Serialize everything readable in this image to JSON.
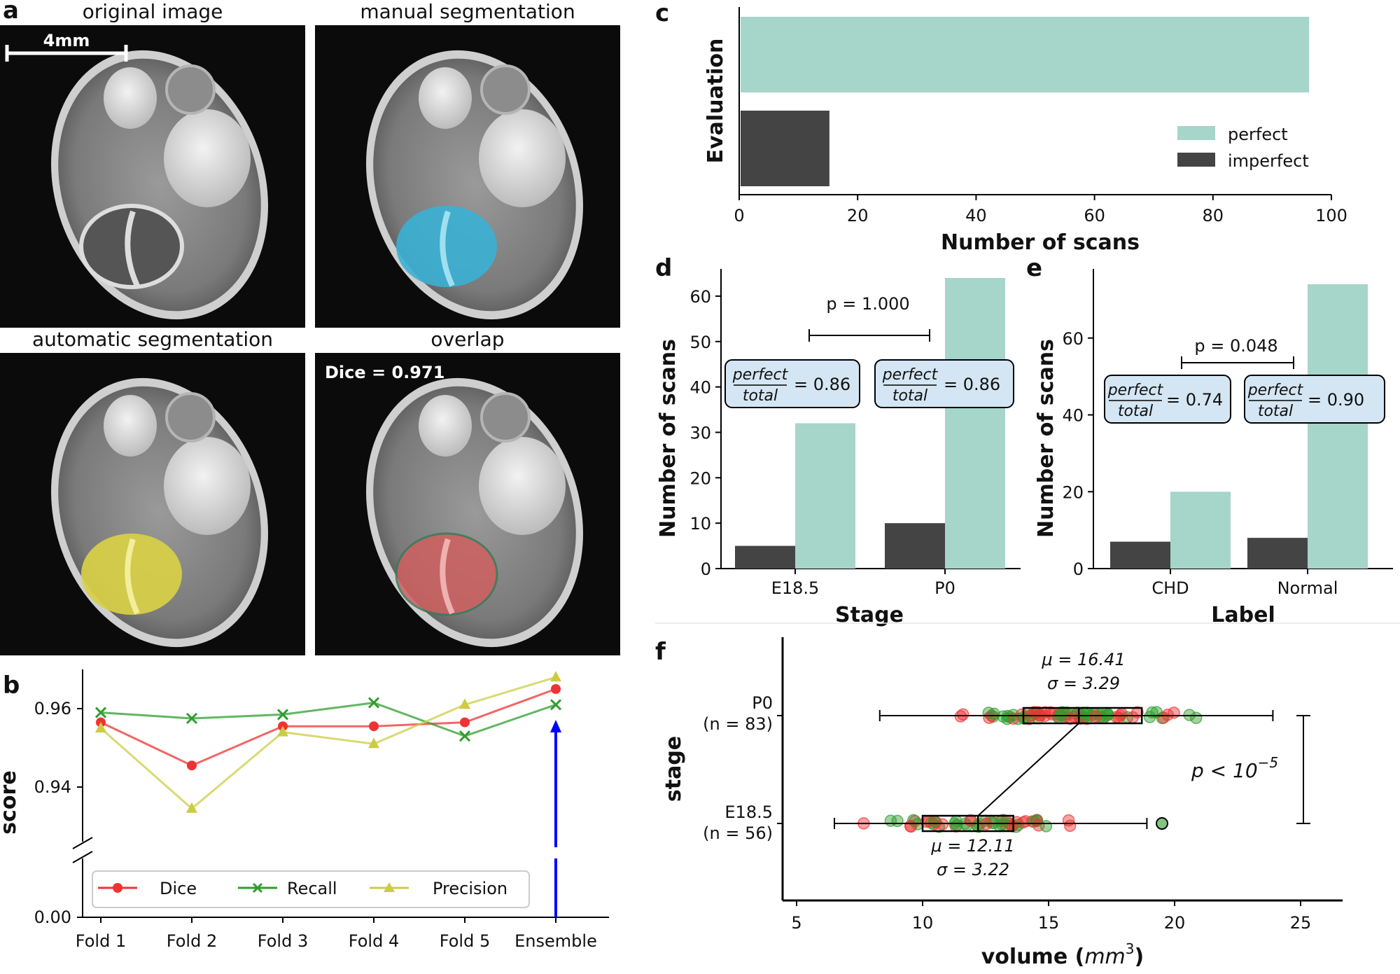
{
  "panels": {
    "a": {
      "letter": "a",
      "titles": [
        "original image",
        "manual segmentation",
        "automatic segmentation",
        "overlap"
      ],
      "scale_bar_label": "4mm",
      "dice_text": "Dice = 0.971",
      "colors": {
        "manual": "#3bb0d4",
        "automatic": "#d8d046",
        "overlap": "#d06060"
      }
    },
    "b_letter": "b",
    "c_letter": "c",
    "d_letter": "d",
    "e_letter": "e",
    "f_letter": "f"
  },
  "chart_data": [
    {
      "id": "b",
      "type": "line",
      "categories": [
        "Fold 1",
        "Fold 2",
        "Fold 3",
        "Fold 4",
        "Fold 5",
        "Ensemble"
      ],
      "highlight_category": "Ensemble",
      "highlight_color": "#0000ff",
      "ylabel": "score",
      "yticks": [
        "0.00",
        "0.94",
        "0.96"
      ],
      "ylim": [
        0.93,
        0.97
      ],
      "axis_break": true,
      "series": [
        {
          "name": "Dice",
          "color": "#ee3333",
          "marker": "circle",
          "values": [
            0.9565,
            0.9455,
            0.9555,
            0.9555,
            0.9565,
            0.965
          ]
        },
        {
          "name": "Recall",
          "color": "#2e9e2e",
          "marker": "x",
          "values": [
            0.959,
            0.9575,
            0.9585,
            0.9615,
            0.953,
            0.961
          ]
        },
        {
          "name": "Precision",
          "color": "#cccc44",
          "marker": "triangle",
          "values": [
            0.955,
            0.9345,
            0.954,
            0.951,
            0.961,
            0.968
          ]
        }
      ]
    },
    {
      "id": "c",
      "type": "bar",
      "orientation": "horizontal",
      "categories": [
        "perfect",
        "imperfect"
      ],
      "values": [
        96,
        15
      ],
      "colors": [
        "#a6d5c9",
        "#444444"
      ],
      "xlabel": "Number of scans",
      "ylabel": "Evaluation",
      "xticks": [
        0,
        20,
        40,
        60,
        80,
        100
      ],
      "xlim": [
        0,
        100
      ],
      "legend": [
        "perfect",
        "imperfect"
      ],
      "legend_position": "right"
    },
    {
      "id": "d",
      "type": "bar",
      "categories": [
        "E18.5",
        "P0"
      ],
      "series": [
        {
          "name": "imperfect",
          "color": "#444444",
          "values": [
            5,
            10
          ]
        },
        {
          "name": "perfect",
          "color": "#a6d5c9",
          "values": [
            32,
            64
          ]
        }
      ],
      "xlabel": "Stage",
      "ylabel": "Number of scans",
      "yticks": [
        0,
        10,
        20,
        30,
        40,
        50,
        60
      ],
      "ylim": [
        0,
        66
      ],
      "p_text": "p = 1.000",
      "ratio_labels": [
        "= 0.86",
        "= 0.86"
      ],
      "ratio_num": "perfect",
      "ratio_den": "total"
    },
    {
      "id": "e",
      "type": "bar",
      "categories": [
        "CHD",
        "Normal"
      ],
      "series": [
        {
          "name": "imperfect",
          "color": "#444444",
          "values": [
            7,
            8
          ]
        },
        {
          "name": "perfect",
          "color": "#a6d5c9",
          "values": [
            20,
            74
          ]
        }
      ],
      "xlabel": "Label",
      "ylabel": "Number of scans",
      "yticks": [
        0,
        20,
        40,
        60
      ],
      "ylim": [
        0,
        78
      ],
      "p_text": "p = 0.048",
      "ratio_labels": [
        "= 0.74",
        "= 0.90"
      ],
      "ratio_num": "perfect",
      "ratio_den": "total"
    },
    {
      "id": "f",
      "type": "scatter",
      "categories": [
        "P0",
        "E18.5"
      ],
      "category_counts": [
        "(n = 83)",
        "(n = 56)"
      ],
      "xlabel": "volume (mm³)",
      "xlabel_text": "volume (",
      "xlabel_unit": "mm",
      "xlabel_exp": "3",
      "xlabel_close": ")",
      "ylabel": "stage",
      "xticks": [
        5,
        10,
        15,
        20,
        25
      ],
      "xlim": [
        4.5,
        26.5
      ],
      "point_colors": [
        "#ee3333",
        "#2e9e2e"
      ],
      "boxes": [
        {
          "stage": "P0",
          "min": 8.3,
          "q1": 14.0,
          "median": 16.2,
          "q3": 18.7,
          "max": 23.9,
          "mu_text": "μ = 16.41",
          "sigma_text": "σ = 3.29"
        },
        {
          "stage": "E18.5",
          "min": 6.5,
          "q1": 10.0,
          "median": 12.2,
          "q3": 13.6,
          "max": 18.9,
          "outlier": 19.5,
          "mu_text": "μ = 12.11",
          "sigma_text": "σ = 3.22"
        }
      ],
      "p_text_main": "p < 10",
      "p_text_exp": "−5"
    }
  ]
}
